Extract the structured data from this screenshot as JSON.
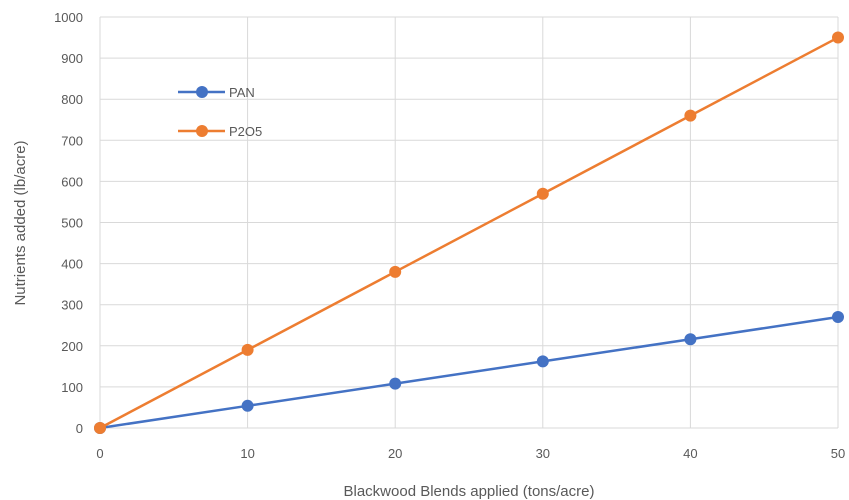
{
  "chart_data": {
    "type": "line",
    "xlabel": "Blackwood Blends applied (tons/acre)",
    "ylabel": "Nutrients added (lb/acre)",
    "x": [
      0,
      10,
      20,
      30,
      40,
      50
    ],
    "xlim": [
      0,
      50
    ],
    "ylim": [
      0,
      1000
    ],
    "xticks": [
      0,
      10,
      20,
      30,
      40,
      50
    ],
    "yticks": [
      0,
      100,
      200,
      300,
      400,
      500,
      600,
      700,
      800,
      900,
      1000
    ],
    "grid": true,
    "legend_position": "upper-left inside plot",
    "series": [
      {
        "name": "PAN",
        "color": "#4472C4",
        "values": [
          0,
          54,
          108,
          162,
          216,
          270
        ]
      },
      {
        "name": "P2O5",
        "color": "#ED7D31",
        "values": [
          0,
          190,
          380,
          570,
          760,
          950
        ]
      }
    ]
  }
}
